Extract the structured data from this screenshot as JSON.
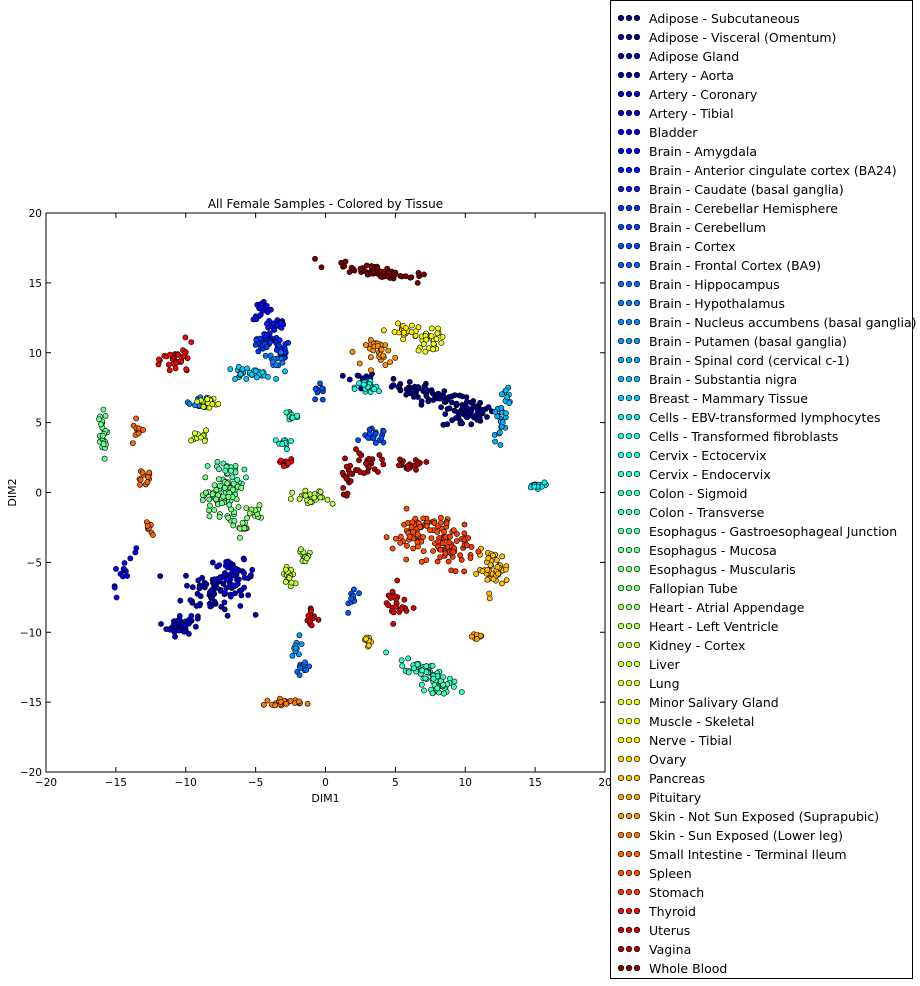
{
  "chart_data": {
    "type": "scatter",
    "title": "All Female Samples - Colored by Tissue",
    "xlabel": "DIM1",
    "ylabel": "DIM2",
    "xlim": [
      -20,
      20
    ],
    "ylim": [
      -20,
      20
    ],
    "xticks": [
      "−20",
      "−15",
      "−10",
      "−5",
      "0",
      "5",
      "10",
      "15",
      "20"
    ],
    "yticks": [
      "−20",
      "−15",
      "−10",
      "−5",
      "0",
      "5",
      "10",
      "15",
      "20"
    ],
    "grid": false,
    "legend_position": "outside-right",
    "colormap": "jet",
    "series": [
      {
        "name": "Adipose - Subcutaneous",
        "color": "#000080",
        "clusters": [
          [
            7.5,
            7.0,
            2.5,
            0.6,
            60,
            -15
          ],
          [
            10.5,
            6.0,
            1.2,
            0.6,
            20,
            0
          ]
        ]
      },
      {
        "name": "Adipose - Visceral (Omentum)",
        "color": "#00008f",
        "clusters": [
          [
            10.0,
            5.5,
            1.5,
            0.8,
            40,
            0
          ]
        ]
      },
      {
        "name": "Adipose Gland",
        "color": "#00009f",
        "clusters": [
          [
            2.5,
            8.0,
            1.0,
            0.6,
            20,
            0
          ]
        ]
      },
      {
        "name": "Artery - Aorta",
        "color": "#0000b3",
        "clusters": [
          [
            -8.0,
            -7.0,
            2.0,
            1.6,
            70,
            0
          ]
        ]
      },
      {
        "name": "Artery - Coronary",
        "color": "#0000c8",
        "clusters": [
          [
            -10.5,
            -9.5,
            0.8,
            0.7,
            40,
            0
          ]
        ]
      },
      {
        "name": "Artery - Tibial",
        "color": "#0000dc",
        "clusters": [
          [
            -6.5,
            -6.0,
            1.3,
            1.0,
            50,
            0
          ]
        ]
      },
      {
        "name": "Bladder",
        "color": "#0000f1",
        "clusters": [
          [
            -14.5,
            -5.5,
            0.5,
            1.4,
            15,
            -30
          ]
        ]
      },
      {
        "name": "Brain - Amygdala",
        "color": "#0004ff",
        "clusters": [
          [
            -4.5,
            13.0,
            0.6,
            0.6,
            20,
            0
          ]
        ]
      },
      {
        "name": "Brain - Anterior cingulate cortex (BA24)",
        "color": "#0010ff",
        "clusters": [
          [
            -3.5,
            12.0,
            0.7,
            0.6,
            20,
            0
          ]
        ]
      },
      {
        "name": "Brain - Caudate (basal ganglia)",
        "color": "#001cff",
        "clusters": [
          [
            -4.0,
            11.0,
            0.8,
            0.6,
            20,
            0
          ]
        ]
      },
      {
        "name": "Brain - Cerebellar Hemisphere",
        "color": "#002cff",
        "clusters": [
          [
            -3.2,
            10.2,
            0.6,
            0.6,
            18,
            0
          ]
        ]
      },
      {
        "name": "Brain - Cerebellum",
        "color": "#003cff",
        "clusters": [
          [
            -4.5,
            10.5,
            0.6,
            0.5,
            18,
            0
          ]
        ]
      },
      {
        "name": "Brain - Cortex",
        "color": "#004cff",
        "clusters": [
          [
            3.5,
            4.0,
            0.8,
            0.5,
            20,
            0
          ],
          [
            -0.5,
            7.0,
            0.6,
            0.6,
            10,
            0
          ]
        ]
      },
      {
        "name": "Brain - Frontal Cortex (BA9)",
        "color": "#005cff",
        "clusters": [
          [
            2.0,
            -7.5,
            0.3,
            0.8,
            12,
            0
          ]
        ]
      },
      {
        "name": "Brain - Hippocampus",
        "color": "#006cff",
        "clusters": [
          [
            -1.5,
            -12.5,
            0.6,
            0.6,
            10,
            0
          ]
        ]
      },
      {
        "name": "Brain - Hypothalamus",
        "color": "#007cff",
        "clusters": [
          [
            -3.5,
            9.5,
            0.5,
            0.5,
            12,
            0
          ]
        ]
      },
      {
        "name": "Brain - Nucleus accumbens (basal ganglia)",
        "color": "#008cff",
        "clusters": [
          [
            -9.0,
            6.5,
            0.7,
            0.4,
            15,
            0
          ]
        ]
      },
      {
        "name": "Brain - Putamen (basal ganglia)",
        "color": "#009cff",
        "clusters": [
          [
            -2.0,
            -11.0,
            0.4,
            0.6,
            10,
            0
          ]
        ]
      },
      {
        "name": "Brain - Spinal cord (cervical c-1)",
        "color": "#00acff",
        "clusters": [
          [
            12.5,
            5.0,
            0.5,
            1.2,
            20,
            0
          ]
        ]
      },
      {
        "name": "Brain - Substantia nigra",
        "color": "#00bcff",
        "clusters": [
          [
            13.0,
            7.0,
            0.3,
            0.6,
            10,
            0
          ]
        ]
      },
      {
        "name": "Breast - Mammary Tissue",
        "color": "#00ccff",
        "clusters": [
          [
            -5.5,
            8.5,
            1.5,
            0.4,
            30,
            0
          ]
        ]
      },
      {
        "name": "Cells - EBV-transformed lymphocytes",
        "color": "#06ecf1",
        "clusters": [
          [
            15.0,
            0.5,
            0.6,
            0.2,
            15,
            0
          ]
        ]
      },
      {
        "name": "Cells - Transformed fibroblasts",
        "color": "#13fce4",
        "clusters": [
          [
            3.0,
            7.5,
            0.8,
            0.5,
            25,
            0
          ]
        ]
      },
      {
        "name": "Cervix - Ectocervix",
        "color": "#1cffdb",
        "clusters": [
          [
            -3.0,
            3.5,
            0.6,
            0.4,
            12,
            0
          ]
        ]
      },
      {
        "name": "Cervix - Endocervix",
        "color": "#26ffd1",
        "clusters": [
          [
            -2.5,
            5.5,
            0.5,
            0.5,
            12,
            0
          ]
        ]
      },
      {
        "name": "Colon - Sigmoid",
        "color": "#33ffc4",
        "clusters": [
          [
            7.5,
            -13.0,
            2.2,
            0.6,
            60,
            -25
          ]
        ]
      },
      {
        "name": "Colon - Transverse",
        "color": "#40ffb7",
        "clusters": [
          [
            8.0,
            -14.0,
            0.8,
            0.5,
            20,
            0
          ]
        ]
      },
      {
        "name": "Esophagus - Gastroesophageal Junction",
        "color": "#50ffa7",
        "clusters": [
          [
            -7.0,
            1.0,
            1.0,
            1.5,
            50,
            0
          ]
        ]
      },
      {
        "name": "Esophagus - Mucosa",
        "color": "#66ff90",
        "clusters": [
          [
            -16.0,
            4.0,
            0.3,
            1.5,
            25,
            0
          ]
        ]
      },
      {
        "name": "Esophagus - Muscularis",
        "color": "#73ff83",
        "clusters": [
          [
            -7.5,
            -0.5,
            1.2,
            1.5,
            50,
            0
          ]
        ]
      },
      {
        "name": "Fallopian Tube",
        "color": "#80ff77",
        "clusters": [
          [
            -6.0,
            -2.5,
            0.5,
            0.6,
            12,
            0
          ]
        ]
      },
      {
        "name": "Heart - Atrial Appendage",
        "color": "#90ff66",
        "clusters": [
          [
            -5.0,
            -1.5,
            0.6,
            0.5,
            15,
            0
          ]
        ]
      },
      {
        "name": "Heart - Left Ventricle",
        "color": "#a7ff50",
        "clusters": [
          [
            -1.5,
            -4.5,
            0.5,
            0.5,
            12,
            0
          ]
        ]
      },
      {
        "name": "Kidney - Cortex",
        "color": "#b7ff40",
        "clusters": [
          [
            -1.0,
            -0.5,
            1.2,
            0.6,
            25,
            0
          ]
        ]
      },
      {
        "name": "Liver",
        "color": "#c4ff33",
        "clusters": [
          [
            -2.5,
            -6.0,
            0.6,
            0.8,
            18,
            0
          ]
        ]
      },
      {
        "name": "Lung",
        "color": "#d1ff26",
        "clusters": [
          [
            -9.0,
            4.0,
            0.5,
            0.4,
            12,
            0
          ]
        ]
      },
      {
        "name": "Minor Salivary Gland",
        "color": "#e4ff13",
        "clusters": [
          [
            -8.5,
            6.5,
            0.7,
            0.3,
            15,
            0
          ]
        ]
      },
      {
        "name": "Muscle - Skeletal",
        "color": "#f1fc06",
        "clusters": [
          [
            7.5,
            11.0,
            1.0,
            0.8,
            30,
            0
          ]
        ]
      },
      {
        "name": "Nerve - Tibial",
        "color": "#ffea00",
        "clusters": [
          [
            5.5,
            11.5,
            0.8,
            0.5,
            20,
            0
          ]
        ]
      },
      {
        "name": "Ovary",
        "color": "#ffd200",
        "clusters": [
          [
            3.0,
            -10.5,
            0.5,
            0.4,
            10,
            0
          ]
        ]
      },
      {
        "name": "Pancreas",
        "color": "#ffbd00",
        "clusters": [
          [
            12.0,
            -5.5,
            1.0,
            1.2,
            45,
            0
          ]
        ]
      },
      {
        "name": "Pituitary",
        "color": "#ffa400",
        "clusters": [
          [
            11.0,
            -10.3,
            0.6,
            0.2,
            10,
            0
          ]
        ]
      },
      {
        "name": "Skin - Not Sun Exposed (Suprapubic)",
        "color": "#ff9000",
        "clusters": [
          [
            4.0,
            10.0,
            1.0,
            0.8,
            30,
            0
          ]
        ]
      },
      {
        "name": "Skin - Sun Exposed (Lower leg)",
        "color": "#ff7a00",
        "clusters": [
          [
            -3.0,
            -15.0,
            1.2,
            0.2,
            25,
            0
          ]
        ]
      },
      {
        "name": "Small Intestine - Terminal Ileum",
        "color": "#ff6300",
        "clusters": [
          [
            -13.0,
            1.0,
            0.6,
            0.5,
            12,
            0
          ],
          [
            -12.5,
            -2.5,
            0.3,
            0.6,
            8,
            0
          ],
          [
            -13.5,
            4.5,
            0.4,
            0.6,
            10,
            0
          ]
        ]
      },
      {
        "name": "Spleen",
        "color": "#ff4e00",
        "clusters": [
          [
            7.0,
            -3.0,
            2.0,
            1.5,
            80,
            0
          ]
        ]
      },
      {
        "name": "Stomach",
        "color": "#ff3800",
        "clusters": [
          [
            9.0,
            -4.0,
            1.5,
            1.2,
            50,
            0
          ]
        ]
      },
      {
        "name": "Thyroid",
        "color": "#f10800",
        "clusters": [
          [
            -10.5,
            9.5,
            1.0,
            1.0,
            30,
            0
          ],
          [
            -3.0,
            2.0,
            0.6,
            0.4,
            15,
            0
          ]
        ]
      },
      {
        "name": "Uterus",
        "color": "#dc0000",
        "clusters": [
          [
            5.0,
            -8.0,
            0.8,
            1.2,
            25,
            0
          ],
          [
            -1.0,
            -9.0,
            0.4,
            1.0,
            12,
            0
          ]
        ]
      },
      {
        "name": "Vagina",
        "color": "#b30000",
        "clusters": [
          [
            3.0,
            2.0,
            1.0,
            0.8,
            25,
            0
          ],
          [
            1.5,
            1.0,
            0.4,
            1.0,
            15,
            0
          ],
          [
            6.0,
            2.0,
            1.0,
            0.4,
            20,
            0
          ]
        ]
      },
      {
        "name": "Whole Blood",
        "color": "#800000",
        "clusters": [
          [
            3.8,
            15.8,
            2.8,
            0.4,
            60,
            -8
          ]
        ]
      }
    ]
  }
}
